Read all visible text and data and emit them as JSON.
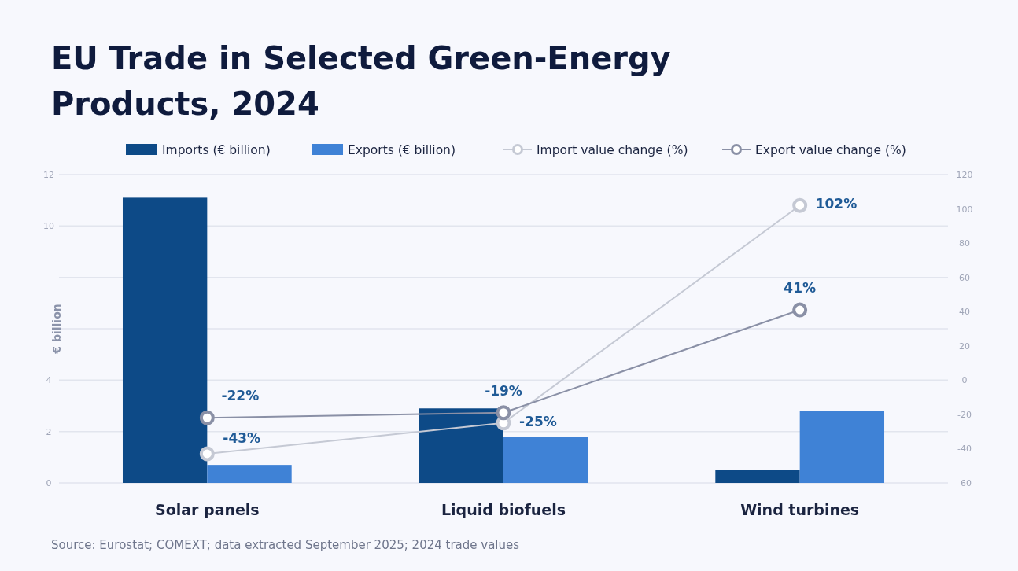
{
  "chart_data": {
    "type": "bar",
    "title": "EU Trade in Selected Green-Energy Products, 2024",
    "ylabel": "€ billion",
    "categories": [
      "Solar panels",
      "Liquid biofuels",
      "Wind turbines"
    ],
    "series": [
      {
        "name": "Imports (€ billion)",
        "color": "#0d4a87",
        "values": [
          11.1,
          2.9,
          0.5
        ]
      },
      {
        "name": "Exports (€ billion)",
        "color": "#3f82d6",
        "values": [
          0.7,
          1.8,
          2.8
        ]
      },
      {
        "name": "Import value change (%)",
        "type": "line",
        "axis": "y2",
        "color": "#c5c9d4",
        "values": [
          -43,
          -25,
          102
        ],
        "value_labels": [
          "-43%",
          "-25%",
          "102%"
        ]
      },
      {
        "name": "Export value change (%)",
        "type": "line",
        "axis": "y2",
        "color": "#8a90a6",
        "values": [
          -22,
          -19,
          41
        ],
        "value_labels": [
          "-22%",
          "-19%",
          "41%"
        ]
      }
    ],
    "ylim": [
      0,
      12
    ],
    "yticks": [
      0,
      2,
      4,
      {
        "value": 6,
        "label": null
      },
      {
        "value": 8,
        "label": null
      },
      10,
      12
    ],
    "y2lim": [
      -60,
      120
    ],
    "y2ticks": [
      -60,
      -40,
      -20,
      0,
      20,
      40,
      60,
      80,
      100,
      120
    ],
    "grid": "y",
    "legend": "top",
    "marker": "circle",
    "annotations": [
      "Source: Eurostat; COMEXT; data extracted September 2025; 2024 trade values"
    ]
  }
}
